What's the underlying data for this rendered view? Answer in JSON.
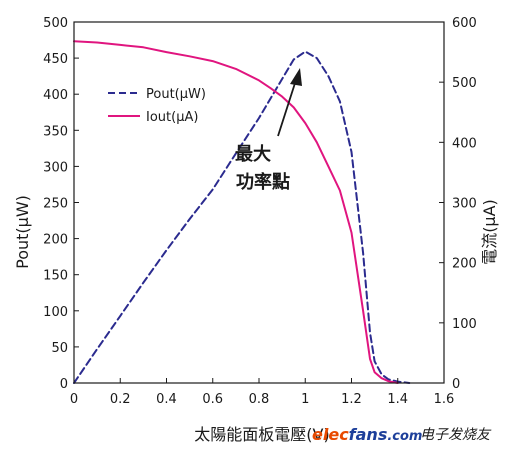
{
  "chart_data": {
    "type": "line",
    "xlabel": "太陽能面板電壓(V)",
    "ylabel_left": "Pout(μW)",
    "ylabel_right": "電流(μA)",
    "xlim": [
      0,
      1.6
    ],
    "ylim_left": [
      0,
      500
    ],
    "ylim_right": [
      0,
      600
    ],
    "x_ticks": [
      "0",
      "0.2",
      "0.4",
      "0.6",
      "0.8",
      "1",
      "1.2",
      "1.4",
      "1.6"
    ],
    "y_ticks_left": [
      "0",
      "50",
      "100",
      "150",
      "200",
      "250",
      "300",
      "350",
      "400",
      "450",
      "500"
    ],
    "y_ticks_right": [
      "0",
      "100",
      "200",
      "300",
      "400",
      "500",
      "600"
    ],
    "grid": false,
    "legend": "upper-left",
    "annotation": {
      "lines": [
        "最大",
        "功率點"
      ]
    },
    "series": [
      {
        "name": "Pout(μW)",
        "axis": "left",
        "style": "dashed",
        "color": "#2b2b8f",
        "x": [
          0,
          0.1,
          0.2,
          0.3,
          0.4,
          0.5,
          0.6,
          0.7,
          0.8,
          0.9,
          0.95,
          1.0,
          1.05,
          1.1,
          1.15,
          1.2,
          1.25,
          1.28,
          1.3,
          1.33,
          1.36,
          1.4,
          1.45
        ],
        "y": [
          0,
          47,
          93,
          139,
          184,
          227,
          268,
          318,
          367,
          421,
          448,
          459,
          450,
          425,
          390,
          320,
          180,
          70,
          30,
          12,
          5,
          2,
          0
        ]
      },
      {
        "name": "Iout(μA)",
        "axis": "right",
        "style": "solid",
        "color": "#e0157f",
        "x": [
          0,
          0.1,
          0.2,
          0.3,
          0.4,
          0.5,
          0.6,
          0.7,
          0.8,
          0.85,
          0.9,
          0.95,
          1.0,
          1.05,
          1.1,
          1.15,
          1.2,
          1.25,
          1.28,
          1.3,
          1.33,
          1.36,
          1.4
        ],
        "y": [
          568,
          566,
          562,
          558,
          550,
          543,
          535,
          522,
          503,
          490,
          476,
          458,
          432,
          400,
          360,
          320,
          250,
          120,
          40,
          18,
          8,
          3,
          0
        ]
      }
    ]
  },
  "watermark": {
    "brand_start": "elec",
    "brand_end": "fans",
    "brand_tld": ".com",
    "brand_cn": "电子发烧友"
  }
}
